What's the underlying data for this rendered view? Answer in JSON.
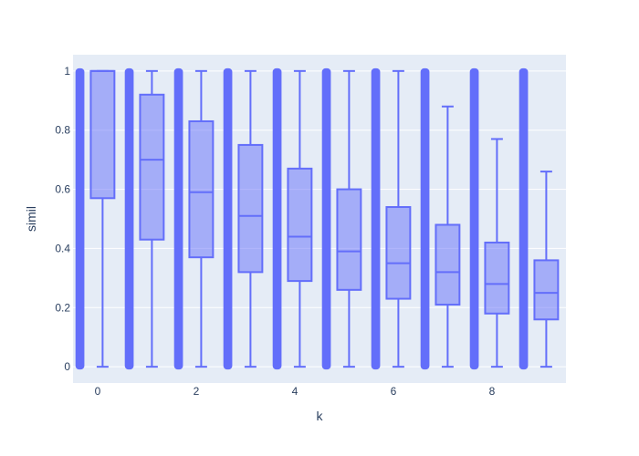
{
  "chart_data": {
    "type": "box",
    "xlabel": "k",
    "ylabel": "simil",
    "xlim": [
      -0.5,
      9.5
    ],
    "ylim": [
      -0.055,
      1.055
    ],
    "x_ticks": [
      0,
      2,
      4,
      6,
      8
    ],
    "y_ticks": [
      0,
      0.2,
      0.4,
      0.6,
      0.8,
      1
    ],
    "y_tick_labels": [
      "0",
      "0.2",
      "0.4",
      "0.6",
      "0.8",
      "1"
    ],
    "grid": true,
    "legend": "none",
    "points": "all",
    "series": [
      {
        "k": 0,
        "min": 0,
        "q1": 0.57,
        "median": 1.0,
        "q3": 1.0,
        "max": 1.0,
        "outliers_range": [
          0,
          1.0
        ]
      },
      {
        "k": 1,
        "min": 0,
        "q1": 0.43,
        "median": 0.7,
        "q3": 0.92,
        "max": 1.0,
        "outliers_range": [
          0,
          1.0
        ]
      },
      {
        "k": 2,
        "min": 0,
        "q1": 0.37,
        "median": 0.59,
        "q3": 0.83,
        "max": 1.0,
        "outliers_range": [
          0,
          1.0
        ]
      },
      {
        "k": 3,
        "min": 0,
        "q1": 0.32,
        "median": 0.51,
        "q3": 0.75,
        "max": 1.0,
        "outliers_range": [
          0,
          1.0
        ]
      },
      {
        "k": 4,
        "min": 0,
        "q1": 0.29,
        "median": 0.44,
        "q3": 0.67,
        "max": 1.0,
        "outliers_range": [
          0,
          1.0
        ]
      },
      {
        "k": 5,
        "min": 0,
        "q1": 0.26,
        "median": 0.39,
        "q3": 0.6,
        "max": 1.0,
        "outliers_range": [
          0,
          1.0
        ]
      },
      {
        "k": 6,
        "min": 0,
        "q1": 0.23,
        "median": 0.35,
        "q3": 0.54,
        "max": 1.0,
        "outliers_range": [
          0,
          1.0
        ]
      },
      {
        "k": 7,
        "min": 0,
        "q1": 0.21,
        "median": 0.32,
        "q3": 0.48,
        "max": 0.88,
        "outliers_range": [
          0,
          1.0
        ]
      },
      {
        "k": 8,
        "min": 0,
        "q1": 0.18,
        "median": 0.28,
        "q3": 0.42,
        "max": 0.77,
        "outliers_range": [
          0,
          1.0
        ]
      },
      {
        "k": 9,
        "min": 0,
        "q1": 0.16,
        "median": 0.25,
        "q3": 0.36,
        "max": 0.66,
        "outliers_range": [
          0,
          1.0
        ]
      }
    ]
  },
  "colors": {
    "plot_bg": "#e5ecf6",
    "grid": "#ffffff",
    "box_line": "#636efa",
    "box_fill": "rgba(99,110,250,0.5)",
    "text": "#2a3f5f"
  }
}
